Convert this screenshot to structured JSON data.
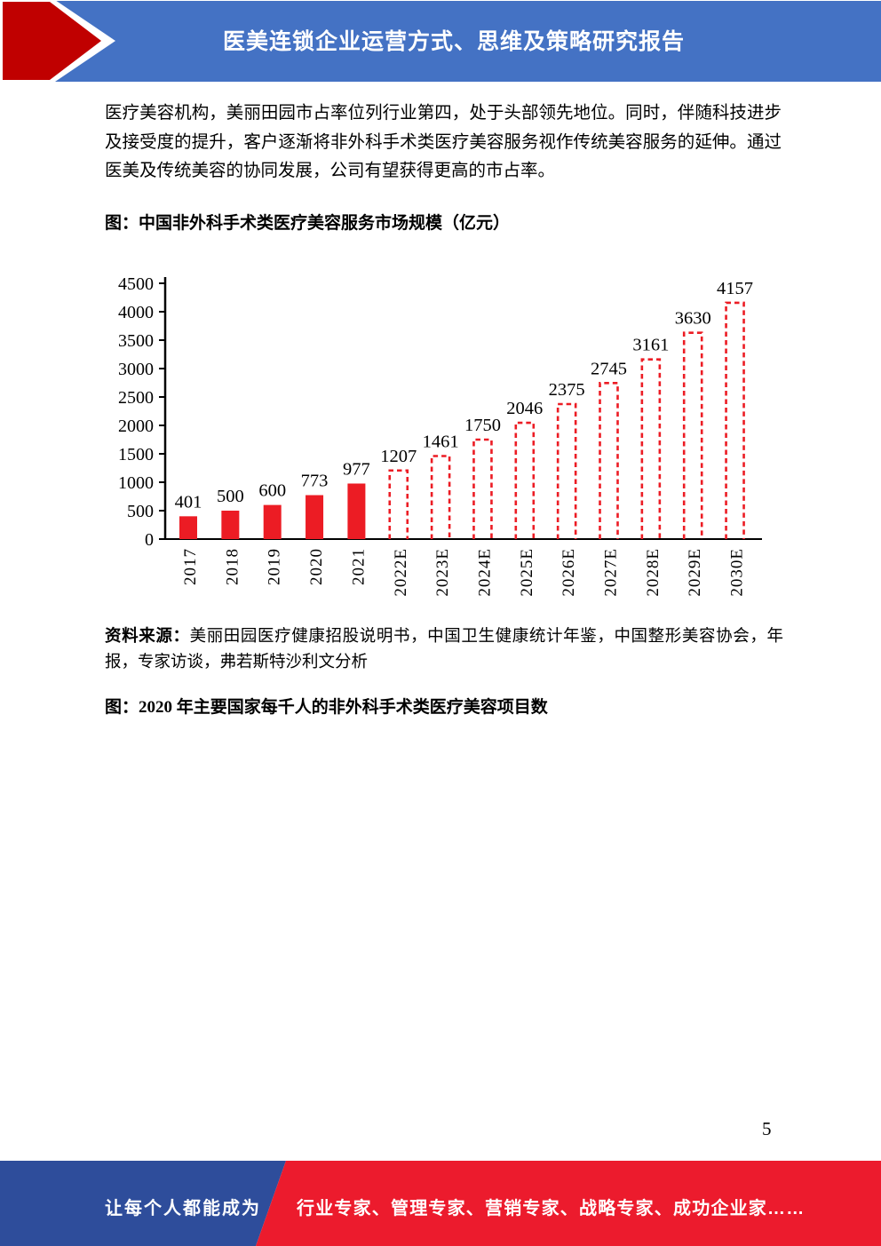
{
  "header": {
    "title": "医美连锁企业运营方式、思维及策略研究报告"
  },
  "paragraph": "医疗美容机构，美丽田园市占率位列行业第四，处于头部领先地位。同时，伴随科技进步及接受度的提升，客户逐渐将非外科手术类医疗美容服务视作传统美容服务的延伸。通过医美及传统美容的协同发展，公司有望获得更高的市占率。",
  "figure1_caption": "图：中国非外科手术类医疗美容服务市场规模（亿元）",
  "chart_data": {
    "type": "bar",
    "title": "中国非外科手术类医疗美容服务市场规模（亿元）",
    "categories": [
      "2017",
      "2018",
      "2019",
      "2020",
      "2021",
      "2022E",
      "2023E",
      "2024E",
      "2025E",
      "2026E",
      "2027E",
      "2028E",
      "2029E",
      "2030E"
    ],
    "values": [
      401,
      500,
      600,
      773,
      977,
      1207,
      1461,
      1750,
      2046,
      2375,
      2745,
      3161,
      3630,
      4157
    ],
    "solid_bar_count": 5,
    "estimated_bars_style": "dashed-outline",
    "bar_color": "#EC1C24",
    "axis_color": "#000000",
    "ylim": [
      0,
      4500
    ],
    "ytick_step": 500,
    "grid": false,
    "legend": "none",
    "xlabel": "",
    "ylabel": ""
  },
  "source_note": {
    "label": "资料来源：",
    "text": "美丽田园医疗健康招股说明书，中国卫生健康统计年鉴，中国整形美容协会，年报，专家访谈，弗若斯特沙利文分析"
  },
  "figure2_caption": "图：2020 年主要国家每千人的非外科手术类医疗美容项目数",
  "page_number": "5",
  "footer": {
    "left_text": "让每个人都能成为",
    "right_text": "行业专家、管理专家、营销专家、战略专家、成功企业家……"
  },
  "colors": {
    "header_blue": "#4472C4",
    "arrow_red": "#C00000",
    "chart_red": "#EC1C24",
    "footer_blue": "#2E4D9B",
    "footer_red": "#EC1B2D",
    "text_black": "#000000",
    "page_white": "#FFFFFF"
  }
}
